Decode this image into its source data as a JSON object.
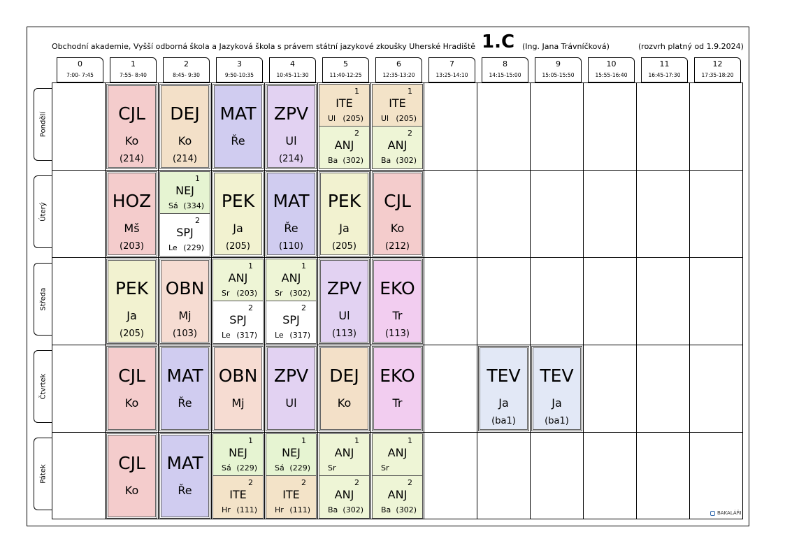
{
  "header": {
    "school": "Obchodní akademie, Vyšší odborná škola a Jazyková škola s právem státní jazykové zkoušky Uherské Hradiště",
    "class_name": "1.C",
    "class_teacher": "(Ing. Jana Trávníčková)",
    "valid_from": "(rozvrh platný od 1.9.2024)"
  },
  "periods": [
    {
      "num": "0",
      "time": "7:00- 7:45"
    },
    {
      "num": "1",
      "time": "7:55- 8:40"
    },
    {
      "num": "2",
      "time": "8:45- 9:30"
    },
    {
      "num": "3",
      "time": "9:50-10:35"
    },
    {
      "num": "4",
      "time": "10:45-11:30"
    },
    {
      "num": "5",
      "time": "11:40-12:25"
    },
    {
      "num": "6",
      "time": "12:35-13:20"
    },
    {
      "num": "7",
      "time": "13:25-14:10"
    },
    {
      "num": "8",
      "time": "14:15-15:00"
    },
    {
      "num": "9",
      "time": "15:05-15:50"
    },
    {
      "num": "10",
      "time": "15:55-16:40"
    },
    {
      "num": "11",
      "time": "16:45-17:30"
    },
    {
      "num": "12",
      "time": "17:35-18:20"
    }
  ],
  "days": [
    "Pondělí",
    "Úterý",
    "Středa",
    "Čtvrtek",
    "Pátek"
  ],
  "colors": {
    "CJL": "#f4cccc",
    "DEJ": "#f3e0c8",
    "MAT": "#d0ccf0",
    "ZPV": "#e2d2f2",
    "ITE": "#f3e3c8",
    "ANJ": "#eef5d6",
    "HOZ": "#f4cccc",
    "NEJ": "#e6f4d2",
    "SPJ": "#ffffff",
    "PEK": "#f2f2d0",
    "OBN": "#f6dcd2",
    "EKO": "#f2cdf0",
    "TEV": "#e2e8f6"
  },
  "lessons": [
    {
      "day": 0,
      "period": 1,
      "subject": "CJL",
      "teacher": "Ko",
      "room": "(214)"
    },
    {
      "day": 0,
      "period": 2,
      "subject": "DEJ",
      "teacher": "Ko",
      "room": "(214)"
    },
    {
      "day": 0,
      "period": 3,
      "subject": "MAT",
      "teacher": "Ře",
      "room": ""
    },
    {
      "day": 0,
      "period": 4,
      "subject": "ZPV",
      "teacher": "Ul",
      "room": "(214)"
    },
    {
      "day": 0,
      "period": 5,
      "groups": [
        {
          "group": "1",
          "subject": "ITE",
          "teacher": "Ul",
          "room": "(205)"
        },
        {
          "group": "2",
          "subject": "ANJ",
          "teacher": "Ba",
          "room": "(302)"
        }
      ]
    },
    {
      "day": 0,
      "period": 6,
      "groups": [
        {
          "group": "1",
          "subject": "ITE",
          "teacher": "Ul",
          "room": "(205)"
        },
        {
          "group": "2",
          "subject": "ANJ",
          "teacher": "Ba",
          "room": "(302)"
        }
      ]
    },
    {
      "day": 1,
      "period": 1,
      "subject": "HOZ",
      "teacher": "Mš",
      "room": "(203)"
    },
    {
      "day": 1,
      "period": 2,
      "groups": [
        {
          "group": "1",
          "subject": "NEJ",
          "teacher": "Sá",
          "room": "(334)"
        },
        {
          "group": "2",
          "subject": "SPJ",
          "teacher": "Le",
          "room": "(229)"
        }
      ]
    },
    {
      "day": 1,
      "period": 3,
      "subject": "PEK",
      "teacher": "Ja",
      "room": "(205)"
    },
    {
      "day": 1,
      "period": 4,
      "subject": "MAT",
      "teacher": "Ře",
      "room": "(110)"
    },
    {
      "day": 1,
      "period": 5,
      "subject": "PEK",
      "teacher": "Ja",
      "room": "(205)"
    },
    {
      "day": 1,
      "period": 6,
      "subject": "CJL",
      "teacher": "Ko",
      "room": "(212)"
    },
    {
      "day": 2,
      "period": 1,
      "subject": "PEK",
      "teacher": "Ja",
      "room": "(205)"
    },
    {
      "day": 2,
      "period": 2,
      "subject": "OBN",
      "teacher": "Mj",
      "room": "(103)"
    },
    {
      "day": 2,
      "period": 3,
      "groups": [
        {
          "group": "1",
          "subject": "ANJ",
          "teacher": "Sr",
          "room": "(203)"
        },
        {
          "group": "2",
          "subject": "SPJ",
          "teacher": "Le",
          "room": "(317)"
        }
      ]
    },
    {
      "day": 2,
      "period": 4,
      "groups": [
        {
          "group": "1",
          "subject": "ANJ",
          "teacher": "Sr",
          "room": "(302)"
        },
        {
          "group": "2",
          "subject": "SPJ",
          "teacher": "Le",
          "room": "(317)"
        }
      ]
    },
    {
      "day": 2,
      "period": 5,
      "subject": "ZPV",
      "teacher": "Ul",
      "room": "(113)"
    },
    {
      "day": 2,
      "period": 6,
      "subject": "EKO",
      "teacher": "Tr",
      "room": "(113)"
    },
    {
      "day": 3,
      "period": 1,
      "subject": "CJL",
      "teacher": "Ko",
      "room": ""
    },
    {
      "day": 3,
      "period": 2,
      "subject": "MAT",
      "teacher": "Ře",
      "room": ""
    },
    {
      "day": 3,
      "period": 3,
      "subject": "OBN",
      "teacher": "Mj",
      "room": ""
    },
    {
      "day": 3,
      "period": 4,
      "subject": "ZPV",
      "teacher": "Ul",
      "room": ""
    },
    {
      "day": 3,
      "period": 5,
      "subject": "DEJ",
      "teacher": "Ko",
      "room": ""
    },
    {
      "day": 3,
      "period": 6,
      "subject": "EKO",
      "teacher": "Tr",
      "room": ""
    },
    {
      "day": 3,
      "period": 8,
      "subject": "TEV",
      "teacher": "Ja",
      "room": "(ba1)"
    },
    {
      "day": 3,
      "period": 9,
      "subject": "TEV",
      "teacher": "Ja",
      "room": "(ba1)"
    },
    {
      "day": 4,
      "period": 1,
      "subject": "CJL",
      "teacher": "Ko",
      "room": ""
    },
    {
      "day": 4,
      "period": 2,
      "subject": "MAT",
      "teacher": "Ře",
      "room": ""
    },
    {
      "day": 4,
      "period": 3,
      "groups": [
        {
          "group": "1",
          "subject": "NEJ",
          "teacher": "Sá",
          "room": "(229)"
        },
        {
          "group": "2",
          "subject": "ITE",
          "teacher": "Hr",
          "room": "(111)"
        }
      ]
    },
    {
      "day": 4,
      "period": 4,
      "groups": [
        {
          "group": "1",
          "subject": "NEJ",
          "teacher": "Sá",
          "room": "(229)"
        },
        {
          "group": "2",
          "subject": "ITE",
          "teacher": "Hr",
          "room": "(111)"
        }
      ]
    },
    {
      "day": 4,
      "period": 5,
      "groups": [
        {
          "group": "1",
          "subject": "ANJ",
          "teacher": "Sr",
          "room": ""
        },
        {
          "group": "2",
          "subject": "ANJ",
          "teacher": "Ba",
          "room": "(302)"
        }
      ]
    },
    {
      "day": 4,
      "period": 6,
      "groups": [
        {
          "group": "1",
          "subject": "ANJ",
          "teacher": "Sr",
          "room": ""
        },
        {
          "group": "2",
          "subject": "ANJ",
          "teacher": "Ba",
          "room": "(302)"
        }
      ]
    }
  ],
  "brand": "BAKALÁŘI"
}
